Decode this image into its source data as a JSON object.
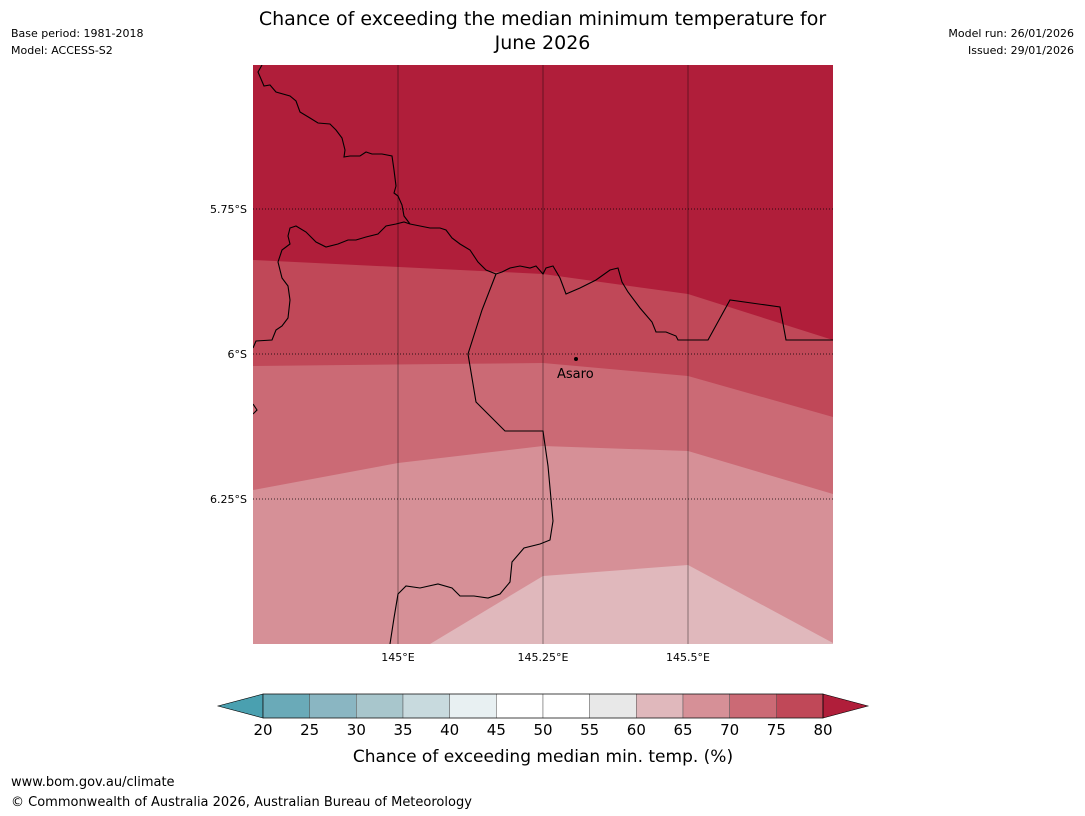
{
  "header": {
    "title_line1": "Chance of exceeding the median minimum temperature for",
    "title_line2": "June 2026",
    "base_period": "Base period: 1981-2018",
    "model": "Model: ACCESS-S2",
    "model_run": "Model run: 26/01/2026",
    "issued": "Issued: 29/01/2026"
  },
  "map": {
    "lat_labels": [
      "5.75°S",
      "6°S",
      "6.25°S"
    ],
    "lon_labels": [
      "145°E",
      "145.25°E",
      "145.5°E"
    ],
    "place": {
      "name": "Asaro"
    },
    "band_colors": {
      "gt80": "#b01e3a",
      "b75_80": "#c04858",
      "b70_75": "#cb6a75",
      "b65_70": "#d69097",
      "b60_65": "#e0b8bc"
    }
  },
  "colorbar": {
    "title": "Chance of exceeding median min. temp. (%)",
    "ticks": [
      "20",
      "25",
      "30",
      "35",
      "40",
      "45",
      "50",
      "55",
      "60",
      "65",
      "70",
      "75",
      "80"
    ],
    "low_extend_color": "#4aa0b0",
    "high_extend_color": "#b01e3a",
    "colors": [
      "#6aaab8",
      "#8ab6c2",
      "#a8c6cc",
      "#c8dade",
      "#e8f0f2",
      "#ffffff",
      "#ffffff",
      "#e8e8e8",
      "#e0b8bc",
      "#d69097",
      "#cb6a75",
      "#c04858"
    ]
  },
  "footer": {
    "url": "www.bom.gov.au/climate",
    "copyright": "© Commonwealth of Australia 2026, Australian Bureau of Meteorology"
  }
}
